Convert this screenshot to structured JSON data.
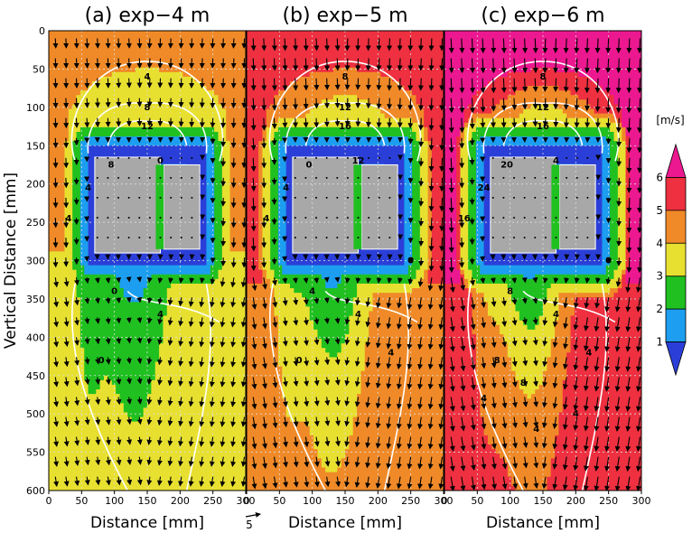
{
  "chart_data": [
    {
      "type": "heatmap",
      "title": "(a)  exp−4 m",
      "xlabel": "Distance [mm]",
      "ylabel": "Vertical Distance [mm]",
      "xlim": [
        0,
        300
      ],
      "ylim": [
        600,
        0
      ],
      "contour_labels": [
        "4",
        "8",
        "12",
        "8",
        "4",
        "0",
        "4",
        "0",
        "4",
        "0"
      ],
      "ambient_speed": 4.0
    },
    {
      "type": "heatmap",
      "title": "(b)  exp−5 m",
      "xlabel": "Distance [mm]",
      "xlim": [
        0,
        300
      ],
      "ylim": [
        600,
        0
      ],
      "contour_labels": [
        "8",
        "12",
        "16",
        "0",
        "4",
        "12",
        "4",
        "4",
        "4",
        "0",
        "4",
        "0"
      ],
      "ambient_speed": 5.0
    },
    {
      "type": "heatmap",
      "title": "(c)  exp−6 m",
      "xlabel": "Distance [mm]",
      "xlim": [
        0,
        300
      ],
      "ylim": [
        600,
        0
      ],
      "contour_labels": [
        "8",
        "12",
        "16",
        "20",
        "24",
        "4",
        "16",
        "8",
        "4",
        "8",
        "4",
        "0",
        "8",
        "4",
        "4",
        "4"
      ],
      "ambient_speed": 6.0
    }
  ],
  "x_ticks": [
    "0",
    "50",
    "100",
    "150",
    "200",
    "250",
    "300"
  ],
  "y_ticks": [
    "0",
    "50",
    "100",
    "150",
    "200",
    "250",
    "300",
    "350",
    "400",
    "450",
    "500",
    "550",
    "600"
  ],
  "colorbar": {
    "unit": "[m/s]",
    "ticks": [
      "1",
      "2",
      "3",
      "4",
      "5",
      "6"
    ],
    "colors": [
      "#2b3fd8",
      "#1d9ef0",
      "#20c020",
      "#e8e030",
      "#f08a28",
      "#ee3040",
      "#ec1890"
    ]
  },
  "vector_reference": {
    "label": "5"
  }
}
